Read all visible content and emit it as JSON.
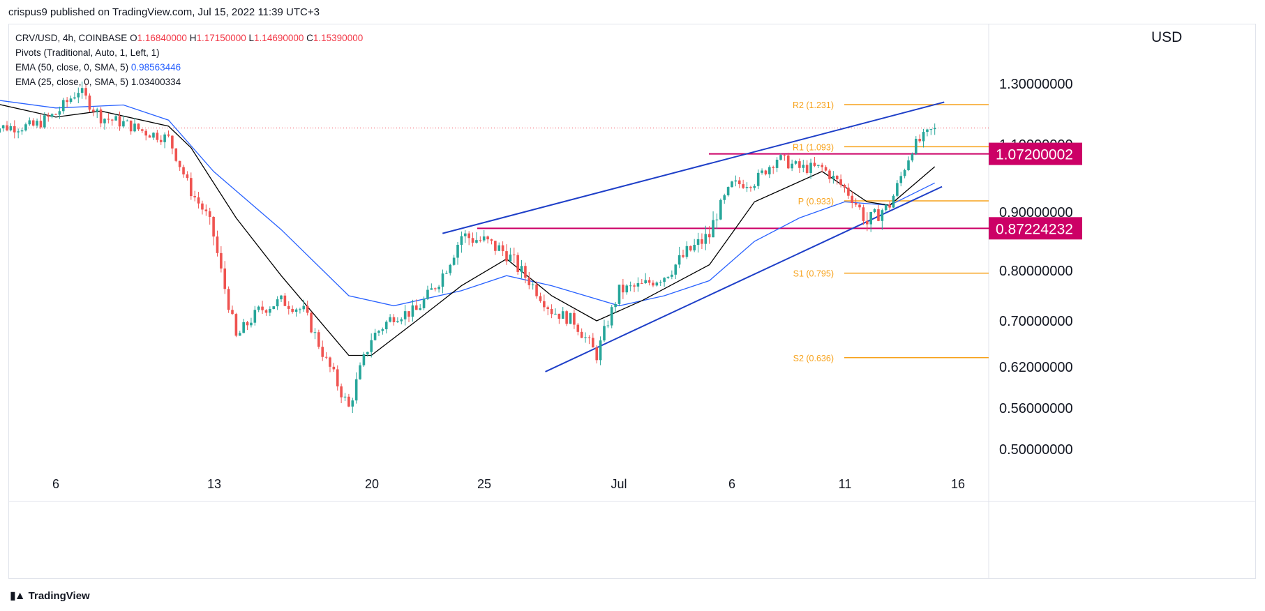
{
  "header": {
    "published_by": "crispus9 published on TradingView.com, Jul 15, 2022 11:39 UTC+3"
  },
  "legend": {
    "symbol": "CRV/USD, 4h, COINBASE",
    "ohlc": {
      "o_label": "O",
      "o": "1.16840000",
      "h_label": "H",
      "h": "1.17150000",
      "l_label": "L",
      "l": "1.14690000",
      "c_label": "C",
      "c": "1.15390000"
    },
    "pivots": "Pivots (Traditional, Auto, 1, Left, 1)",
    "ema50_label": "EMA (50, close, 0, SMA, 5)",
    "ema50_value": "0.98563446",
    "ema25_label": "EMA (25, close, 0, SMA, 5)",
    "ema25_value": "1.03400334"
  },
  "axis_currency": "USD",
  "footer": {
    "brand": "TradingView",
    "logo_icon": "tradingview-logo-icon"
  },
  "colors": {
    "up": "#26a69a",
    "down": "#ef5350",
    "ema50": "#2962ff",
    "ema25": "#000000",
    "pivot": "#f7a21b",
    "level": "#cc0066",
    "trend": "#1e3fc8",
    "price_line": "#f23645"
  },
  "chart_data": {
    "type": "candlestick",
    "timeframe": "4h",
    "y_tick_labels": [
      "1.30000000",
      "1.10000000",
      "0.90000000",
      "0.80000000",
      "0.70000000",
      "0.62000000",
      "0.56000000",
      "0.50000000"
    ],
    "x_tick_labels": [
      "6",
      "13",
      "20",
      "25",
      "Jul",
      "6",
      "11",
      "16"
    ],
    "pivot_levels": [
      {
        "label": "R2 (1.231)",
        "value": 1.231
      },
      {
        "label": "R1 (1.093)",
        "value": 1.093
      },
      {
        "label": "P (0.933)",
        "value": 0.933
      },
      {
        "label": "S1 (0.795)",
        "value": 0.795
      },
      {
        "label": "S2 (0.636)",
        "value": 0.636
      }
    ],
    "horizontal_levels": [
      {
        "label": "1.07200002",
        "value": 1.072
      },
      {
        "label": "0.87224232",
        "value": 0.87224232
      }
    ],
    "trendlines": [
      {
        "name": "upper",
        "from": {
          "date": "2022-06-24",
          "value": 0.872
        },
        "to": {
          "date": "2022-07-15",
          "value": 1.231
        }
      },
      {
        "name": "lower",
        "from": {
          "date": "2022-06-29",
          "value": 0.635
        },
        "to": {
          "date": "2022-07-15",
          "value": 0.965
        }
      }
    ],
    "last_price": 1.1539,
    "close_path": [
      {
        "date": "2022-06-03",
        "value": 1.155
      },
      {
        "date": "2022-06-05",
        "value": 1.16
      },
      {
        "date": "2022-06-06",
        "value": 1.2
      },
      {
        "date": "2022-06-07",
        "value": 1.28
      },
      {
        "date": "2022-06-08",
        "value": 1.19
      },
      {
        "date": "2022-06-09",
        "value": 1.17
      },
      {
        "date": "2022-06-10",
        "value": 1.14
      },
      {
        "date": "2022-06-11",
        "value": 1.12
      },
      {
        "date": "2022-06-12",
        "value": 0.96
      },
      {
        "date": "2022-06-13",
        "value": 0.86
      },
      {
        "date": "2022-06-14",
        "value": 0.67
      },
      {
        "date": "2022-06-15",
        "value": 0.72
      },
      {
        "date": "2022-06-16",
        "value": 0.74
      },
      {
        "date": "2022-06-17",
        "value": 0.72
      },
      {
        "date": "2022-06-18",
        "value": 0.63
      },
      {
        "date": "2022-06-19",
        "value": 0.56
      },
      {
        "date": "2022-06-20",
        "value": 0.67
      },
      {
        "date": "2022-06-21",
        "value": 0.71
      },
      {
        "date": "2022-06-22",
        "value": 0.72
      },
      {
        "date": "2022-06-23",
        "value": 0.78
      },
      {
        "date": "2022-06-24",
        "value": 0.86
      },
      {
        "date": "2022-06-25",
        "value": 0.85
      },
      {
        "date": "2022-06-26",
        "value": 0.83
      },
      {
        "date": "2022-06-27",
        "value": 0.78
      },
      {
        "date": "2022-06-28",
        "value": 0.72
      },
      {
        "date": "2022-06-29",
        "value": 0.7
      },
      {
        "date": "2022-06-30",
        "value": 0.64
      },
      {
        "date": "2022-07-01",
        "value": 0.76
      },
      {
        "date": "2022-07-02",
        "value": 0.77
      },
      {
        "date": "2022-07-03",
        "value": 0.79
      },
      {
        "date": "2022-07-04",
        "value": 0.83
      },
      {
        "date": "2022-07-05",
        "value": 0.86
      },
      {
        "date": "2022-07-06",
        "value": 0.98
      },
      {
        "date": "2022-07-07",
        "value": 0.99
      },
      {
        "date": "2022-07-08",
        "value": 1.06
      },
      {
        "date": "2022-07-09",
        "value": 1.03
      },
      {
        "date": "2022-07-10",
        "value": 1.03
      },
      {
        "date": "2022-07-11",
        "value": 0.97
      },
      {
        "date": "2022-07-12",
        "value": 0.88
      },
      {
        "date": "2022-07-13",
        "value": 0.92
      },
      {
        "date": "2022-07-14",
        "value": 1.09
      },
      {
        "date": "2022-07-15",
        "value": 1.154
      }
    ],
    "ema25_path": [
      {
        "date": "2022-06-03",
        "value": 1.24
      },
      {
        "date": "2022-06-06",
        "value": 1.19
      },
      {
        "date": "2022-06-08",
        "value": 1.21
      },
      {
        "date": "2022-06-11",
        "value": 1.16
      },
      {
        "date": "2022-06-12",
        "value": 1.09
      },
      {
        "date": "2022-06-14",
        "value": 0.89
      },
      {
        "date": "2022-06-16",
        "value": 0.79
      },
      {
        "date": "2022-06-19",
        "value": 0.64
      },
      {
        "date": "2022-06-20",
        "value": 0.64
      },
      {
        "date": "2022-06-22",
        "value": 0.7
      },
      {
        "date": "2022-06-24",
        "value": 0.77
      },
      {
        "date": "2022-06-26",
        "value": 0.82
      },
      {
        "date": "2022-06-28",
        "value": 0.75
      },
      {
        "date": "2022-06-30",
        "value": 0.7
      },
      {
        "date": "2022-07-02",
        "value": 0.74
      },
      {
        "date": "2022-07-05",
        "value": 0.81
      },
      {
        "date": "2022-07-07",
        "value": 0.93
      },
      {
        "date": "2022-07-09",
        "value": 0.99
      },
      {
        "date": "2022-07-10",
        "value": 1.02
      },
      {
        "date": "2022-07-12",
        "value": 0.93
      },
      {
        "date": "2022-07-13",
        "value": 0.92
      },
      {
        "date": "2022-07-15",
        "value": 1.034
      }
    ],
    "ema50_path": [
      {
        "date": "2022-06-03",
        "value": 1.25
      },
      {
        "date": "2022-06-06",
        "value": 1.22
      },
      {
        "date": "2022-06-09",
        "value": 1.23
      },
      {
        "date": "2022-06-11",
        "value": 1.18
      },
      {
        "date": "2022-06-13",
        "value": 1.02
      },
      {
        "date": "2022-06-16",
        "value": 0.87
      },
      {
        "date": "2022-06-19",
        "value": 0.75
      },
      {
        "date": "2022-06-21",
        "value": 0.73
      },
      {
        "date": "2022-06-24",
        "value": 0.76
      },
      {
        "date": "2022-06-26",
        "value": 0.79
      },
      {
        "date": "2022-06-28",
        "value": 0.77
      },
      {
        "date": "2022-07-01",
        "value": 0.73
      },
      {
        "date": "2022-07-03",
        "value": 0.75
      },
      {
        "date": "2022-07-05",
        "value": 0.78
      },
      {
        "date": "2022-07-07",
        "value": 0.85
      },
      {
        "date": "2022-07-09",
        "value": 0.89
      },
      {
        "date": "2022-07-11",
        "value": 0.93
      },
      {
        "date": "2022-07-13",
        "value": 0.92
      },
      {
        "date": "2022-07-15",
        "value": 0.986
      }
    ]
  }
}
